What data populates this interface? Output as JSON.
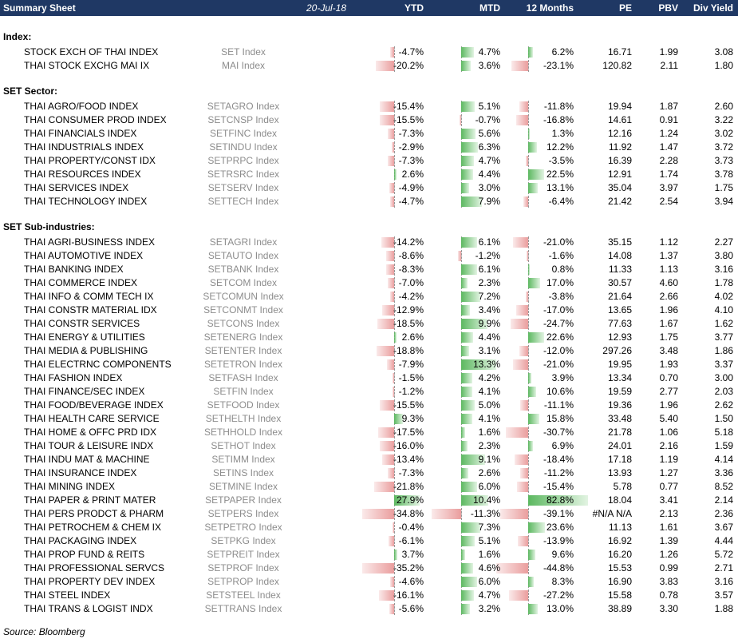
{
  "header": {
    "title": "Summary Sheet",
    "date": "20-Jul-18",
    "columns": [
      "YTD",
      "MTD",
      "12 Months",
      "PE",
      "PBV",
      "Div Yield"
    ]
  },
  "sections": [
    {
      "label": "Index:",
      "rows": [
        {
          "name": "STOCK EXCH OF THAI INDEX",
          "ticker": "SET Index",
          "ytd": "-4.7%",
          "mtd": "4.7%",
          "m12": "6.2%",
          "pe": "16.71",
          "pbv": "1.99",
          "div": "3.08",
          "ytd_v": -4.7,
          "mtd_v": 4.7,
          "m12_v": 6.2
        },
        {
          "name": "THAI STOCK EXCHG MAI IX",
          "ticker": "MAI Index",
          "ytd": "-20.2%",
          "mtd": "3.6%",
          "m12": "-23.1%",
          "pe": "120.82",
          "pbv": "2.11",
          "div": "1.80",
          "ytd_v": -20.2,
          "mtd_v": 3.6,
          "m12_v": -23.1
        }
      ]
    },
    {
      "label": "SET Sector:",
      "rows": [
        {
          "name": "THAI AGRO/FOOD INDEX",
          "ticker": "SETAGRO Index",
          "ytd": "-15.4%",
          "mtd": "5.1%",
          "m12": "-11.8%",
          "pe": "19.94",
          "pbv": "1.87",
          "div": "2.60",
          "ytd_v": -15.4,
          "mtd_v": 5.1,
          "m12_v": -11.8
        },
        {
          "name": "THAI CONSUMER PROD INDEX",
          "ticker": "SETCNSP Index",
          "ytd": "-15.5%",
          "mtd": "-0.7%",
          "m12": "-16.8%",
          "pe": "14.61",
          "pbv": "0.91",
          "div": "3.22",
          "ytd_v": -15.5,
          "mtd_v": -0.7,
          "m12_v": -16.8
        },
        {
          "name": "THAI FINANCIALS INDEX",
          "ticker": "SETFINC Index",
          "ytd": "-7.3%",
          "mtd": "5.6%",
          "m12": "1.3%",
          "pe": "12.16",
          "pbv": "1.24",
          "div": "3.02",
          "ytd_v": -7.3,
          "mtd_v": 5.6,
          "m12_v": 1.3
        },
        {
          "name": "THAI INDUSTRIALS INDEX",
          "ticker": "SETINDU Index",
          "ytd": "-2.9%",
          "mtd": "6.3%",
          "m12": "12.2%",
          "pe": "11.92",
          "pbv": "1.47",
          "div": "3.72",
          "ytd_v": -2.9,
          "mtd_v": 6.3,
          "m12_v": 12.2
        },
        {
          "name": "THAI PROPERTY/CONST IDX",
          "ticker": "SETPRPC Index",
          "ytd": "-7.3%",
          "mtd": "4.7%",
          "m12": "-3.5%",
          "pe": "16.39",
          "pbv": "2.28",
          "div": "3.73",
          "ytd_v": -7.3,
          "mtd_v": 4.7,
          "m12_v": -3.5
        },
        {
          "name": "THAI RESOURCES INDEX",
          "ticker": "SETRSRC Index",
          "ytd": "2.6%",
          "mtd": "4.4%",
          "m12": "22.5%",
          "pe": "12.91",
          "pbv": "1.74",
          "div": "3.78",
          "ytd_v": 2.6,
          "mtd_v": 4.4,
          "m12_v": 22.5
        },
        {
          "name": "THAI SERVICES INDEX",
          "ticker": "SETSERV Index",
          "ytd": "-4.9%",
          "mtd": "3.0%",
          "m12": "13.1%",
          "pe": "35.04",
          "pbv": "3.97",
          "div": "1.75",
          "ytd_v": -4.9,
          "mtd_v": 3.0,
          "m12_v": 13.1
        },
        {
          "name": "THAI TECHNOLOGY INDEX",
          "ticker": "SETTECH Index",
          "ytd": "-4.7%",
          "mtd": "7.9%",
          "m12": "-6.4%",
          "pe": "21.42",
          "pbv": "2.54",
          "div": "3.94",
          "ytd_v": -4.7,
          "mtd_v": 7.9,
          "m12_v": -6.4
        }
      ]
    },
    {
      "label": "SET Sub-industries:",
      "rows": [
        {
          "name": "THAI AGRI-BUSINESS INDEX",
          "ticker": "SETAGRI Index",
          "ytd": "-14.2%",
          "mtd": "6.1%",
          "m12": "-21.0%",
          "pe": "35.15",
          "pbv": "1.12",
          "div": "2.27",
          "ytd_v": -14.2,
          "mtd_v": 6.1,
          "m12_v": -21.0
        },
        {
          "name": "THAI AUTOMOTIVE INDEX",
          "ticker": "SETAUTO Index",
          "ytd": "-8.6%",
          "mtd": "-1.2%",
          "m12": "-1.6%",
          "pe": "14.08",
          "pbv": "1.37",
          "div": "3.80",
          "ytd_v": -8.6,
          "mtd_v": -1.2,
          "m12_v": -1.6
        },
        {
          "name": "THAI BANKING INDEX",
          "ticker": "SETBANK Index",
          "ytd": "-8.3%",
          "mtd": "6.1%",
          "m12": "0.8%",
          "pe": "11.33",
          "pbv": "1.13",
          "div": "3.16",
          "ytd_v": -8.3,
          "mtd_v": 6.1,
          "m12_v": 0.8
        },
        {
          "name": "THAI COMMERCE INDEX",
          "ticker": "SETCOM Index",
          "ytd": "-7.0%",
          "mtd": "2.3%",
          "m12": "17.0%",
          "pe": "30.57",
          "pbv": "4.60",
          "div": "1.78",
          "ytd_v": -7.0,
          "mtd_v": 2.3,
          "m12_v": 17.0
        },
        {
          "name": "THAI INFO & COMM TECH IX",
          "ticker": "SETCOMUN Index",
          "ytd": "-4.2%",
          "mtd": "7.2%",
          "m12": "-3.8%",
          "pe": "21.64",
          "pbv": "2.66",
          "div": "4.02",
          "ytd_v": -4.2,
          "mtd_v": 7.2,
          "m12_v": -3.8
        },
        {
          "name": "THAI CONSTR MATERIAL IDX",
          "ticker": "SETCONMT Index",
          "ytd": "-12.9%",
          "mtd": "3.4%",
          "m12": "-17.0%",
          "pe": "13.65",
          "pbv": "1.96",
          "div": "4.10",
          "ytd_v": -12.9,
          "mtd_v": 3.4,
          "m12_v": -17.0
        },
        {
          "name": "THAI CONSTR SERVICES",
          "ticker": "SETCONS Index",
          "ytd": "-18.5%",
          "mtd": "9.9%",
          "m12": "-24.7%",
          "pe": "77.63",
          "pbv": "1.67",
          "div": "1.62",
          "ytd_v": -18.5,
          "mtd_v": 9.9,
          "m12_v": -24.7
        },
        {
          "name": "THAI ENERGY & UTILITIES",
          "ticker": "SETENERG Index",
          "ytd": "2.6%",
          "mtd": "4.4%",
          "m12": "22.6%",
          "pe": "12.93",
          "pbv": "1.75",
          "div": "3.77",
          "ytd_v": 2.6,
          "mtd_v": 4.4,
          "m12_v": 22.6
        },
        {
          "name": "THAI MEDIA & PUBLISHING",
          "ticker": "SETENTER Index",
          "ytd": "-18.8%",
          "mtd": "3.1%",
          "m12": "-12.0%",
          "pe": "297.26",
          "pbv": "3.48",
          "div": "1.86",
          "ytd_v": -18.8,
          "mtd_v": 3.1,
          "m12_v": -12.0
        },
        {
          "name": "THAI ELECTRNC COMPONENTS",
          "ticker": "SETETRON Index",
          "ytd": "-7.9%",
          "mtd": "13.3%",
          "m12": "-21.0%",
          "pe": "19.95",
          "pbv": "1.93",
          "div": "3.37",
          "ytd_v": -7.9,
          "mtd_v": 13.3,
          "m12_v": -21.0
        },
        {
          "name": "THAI FASHION INDEX",
          "ticker": "SETFASH Index",
          "ytd": "-1.5%",
          "mtd": "4.2%",
          "m12": "3.9%",
          "pe": "13.34",
          "pbv": "0.70",
          "div": "3.00",
          "ytd_v": -1.5,
          "mtd_v": 4.2,
          "m12_v": 3.9
        },
        {
          "name": "THAI FINANCE/SEC INDEX",
          "ticker": "SETFIN Index",
          "ytd": "-1.2%",
          "mtd": "4.1%",
          "m12": "10.6%",
          "pe": "19.59",
          "pbv": "2.77",
          "div": "2.03",
          "ytd_v": -1.2,
          "mtd_v": 4.1,
          "m12_v": 10.6
        },
        {
          "name": "THAI FOOD/BEVERAGE INDEX",
          "ticker": "SETFOOD Index",
          "ytd": "-15.5%",
          "mtd": "5.0%",
          "m12": "-11.1%",
          "pe": "19.36",
          "pbv": "1.96",
          "div": "2.62",
          "ytd_v": -15.5,
          "mtd_v": 5.0,
          "m12_v": -11.1
        },
        {
          "name": "THAI HEALTH CARE SERVICE",
          "ticker": "SETHELTH Index",
          "ytd": "9.3%",
          "mtd": "4.1%",
          "m12": "15.8%",
          "pe": "33.48",
          "pbv": "5.40",
          "div": "1.50",
          "ytd_v": 9.3,
          "mtd_v": 4.1,
          "m12_v": 15.8
        },
        {
          "name": "THAI HOME & OFFC PRD IDX",
          "ticker": "SETHHOLD Index",
          "ytd": "-17.5%",
          "mtd": "1.6%",
          "m12": "-30.7%",
          "pe": "21.78",
          "pbv": "1.06",
          "div": "5.18",
          "ytd_v": -17.5,
          "mtd_v": 1.6,
          "m12_v": -30.7
        },
        {
          "name": "THAI TOUR & LEISURE INDX",
          "ticker": "SETHOT Index",
          "ytd": "-16.0%",
          "mtd": "2.3%",
          "m12": "6.9%",
          "pe": "24.01",
          "pbv": "2.16",
          "div": "1.59",
          "ytd_v": -16.0,
          "mtd_v": 2.3,
          "m12_v": 6.9
        },
        {
          "name": "THAI INDU MAT & MACHINE",
          "ticker": "SETIMM Index",
          "ytd": "-13.4%",
          "mtd": "9.1%",
          "m12": "-18.4%",
          "pe": "17.18",
          "pbv": "1.19",
          "div": "4.14",
          "ytd_v": -13.4,
          "mtd_v": 9.1,
          "m12_v": -18.4
        },
        {
          "name": "THAI INSURANCE INDEX",
          "ticker": "SETINS Index",
          "ytd": "-7.3%",
          "mtd": "2.6%",
          "m12": "-11.2%",
          "pe": "13.93",
          "pbv": "1.27",
          "div": "3.36",
          "ytd_v": -7.3,
          "mtd_v": 2.6,
          "m12_v": -11.2
        },
        {
          "name": "THAI MINING INDEX",
          "ticker": "SETMINE Index",
          "ytd": "-21.8%",
          "mtd": "6.0%",
          "m12": "-15.4%",
          "pe": "5.78",
          "pbv": "0.77",
          "div": "8.52",
          "ytd_v": -21.8,
          "mtd_v": 6.0,
          "m12_v": -15.4
        },
        {
          "name": "THAI PAPER & PRINT MATER",
          "ticker": "SETPAPER Index",
          "ytd": "27.9%",
          "mtd": "10.4%",
          "m12": "82.8%",
          "pe": "18.04",
          "pbv": "3.41",
          "div": "2.14",
          "ytd_v": 27.9,
          "mtd_v": 10.4,
          "m12_v": 82.8
        },
        {
          "name": "THAI PERS PRODCT & PHARM",
          "ticker": "SETPERS Index",
          "ytd": "-34.8%",
          "mtd": "-11.3%",
          "m12": "-39.1%",
          "pe": "#N/A N/A",
          "pbv": "2.13",
          "div": "2.36",
          "ytd_v": -34.8,
          "mtd_v": -11.3,
          "m12_v": -39.1
        },
        {
          "name": "THAI PETROCHEM & CHEM IX",
          "ticker": "SETPETRO Index",
          "ytd": "-0.4%",
          "mtd": "7.3%",
          "m12": "23.6%",
          "pe": "11.13",
          "pbv": "1.61",
          "div": "3.67",
          "ytd_v": -0.4,
          "mtd_v": 7.3,
          "m12_v": 23.6
        },
        {
          "name": "THAI PACKAGING INDEX",
          "ticker": "SETPKG Index",
          "ytd": "-6.1%",
          "mtd": "5.1%",
          "m12": "-13.9%",
          "pe": "16.92",
          "pbv": "1.39",
          "div": "4.44",
          "ytd_v": -6.1,
          "mtd_v": 5.1,
          "m12_v": -13.9
        },
        {
          "name": "THAI PROP FUND & REITS",
          "ticker": "SETPREIT Index",
          "ytd": "3.7%",
          "mtd": "1.6%",
          "m12": "9.6%",
          "pe": "16.20",
          "pbv": "1.26",
          "div": "5.72",
          "ytd_v": 3.7,
          "mtd_v": 1.6,
          "m12_v": 9.6
        },
        {
          "name": "THAI PROFESSIONAL SERVCS",
          "ticker": "SETPROF Index",
          "ytd": "-35.2%",
          "mtd": "4.6%",
          "m12": "-44.8%",
          "pe": "15.53",
          "pbv": "0.99",
          "div": "2.71",
          "ytd_v": -35.2,
          "mtd_v": 4.6,
          "m12_v": -44.8
        },
        {
          "name": "THAI PROPERTY DEV INDEX",
          "ticker": "SETPROP Index",
          "ytd": "-4.6%",
          "mtd": "6.0%",
          "m12": "8.3%",
          "pe": "16.90",
          "pbv": "3.83",
          "div": "3.16",
          "ytd_v": -4.6,
          "mtd_v": 6.0,
          "m12_v": 8.3
        },
        {
          "name": "THAI STEEL INDEX",
          "ticker": "SETSTEEL Index",
          "ytd": "-16.1%",
          "mtd": "4.7%",
          "m12": "-27.2%",
          "pe": "15.58",
          "pbv": "0.78",
          "div": "3.57",
          "ytd_v": -16.1,
          "mtd_v": 4.7,
          "m12_v": -27.2
        },
        {
          "name": "THAI TRANS & LOGIST INDX",
          "ticker": "SETTRANS Index",
          "ytd": "-5.6%",
          "mtd": "3.2%",
          "m12": "13.0%",
          "pe": "38.89",
          "pbv": "3.30",
          "div": "1.88",
          "ytd_v": -5.6,
          "mtd_v": 3.2,
          "m12_v": 13.0
        }
      ]
    }
  ],
  "source": "Source: Bloomberg",
  "colors": {
    "header_bg": "#1f3864",
    "positive": "#5cb860",
    "negative": "#e89696"
  }
}
